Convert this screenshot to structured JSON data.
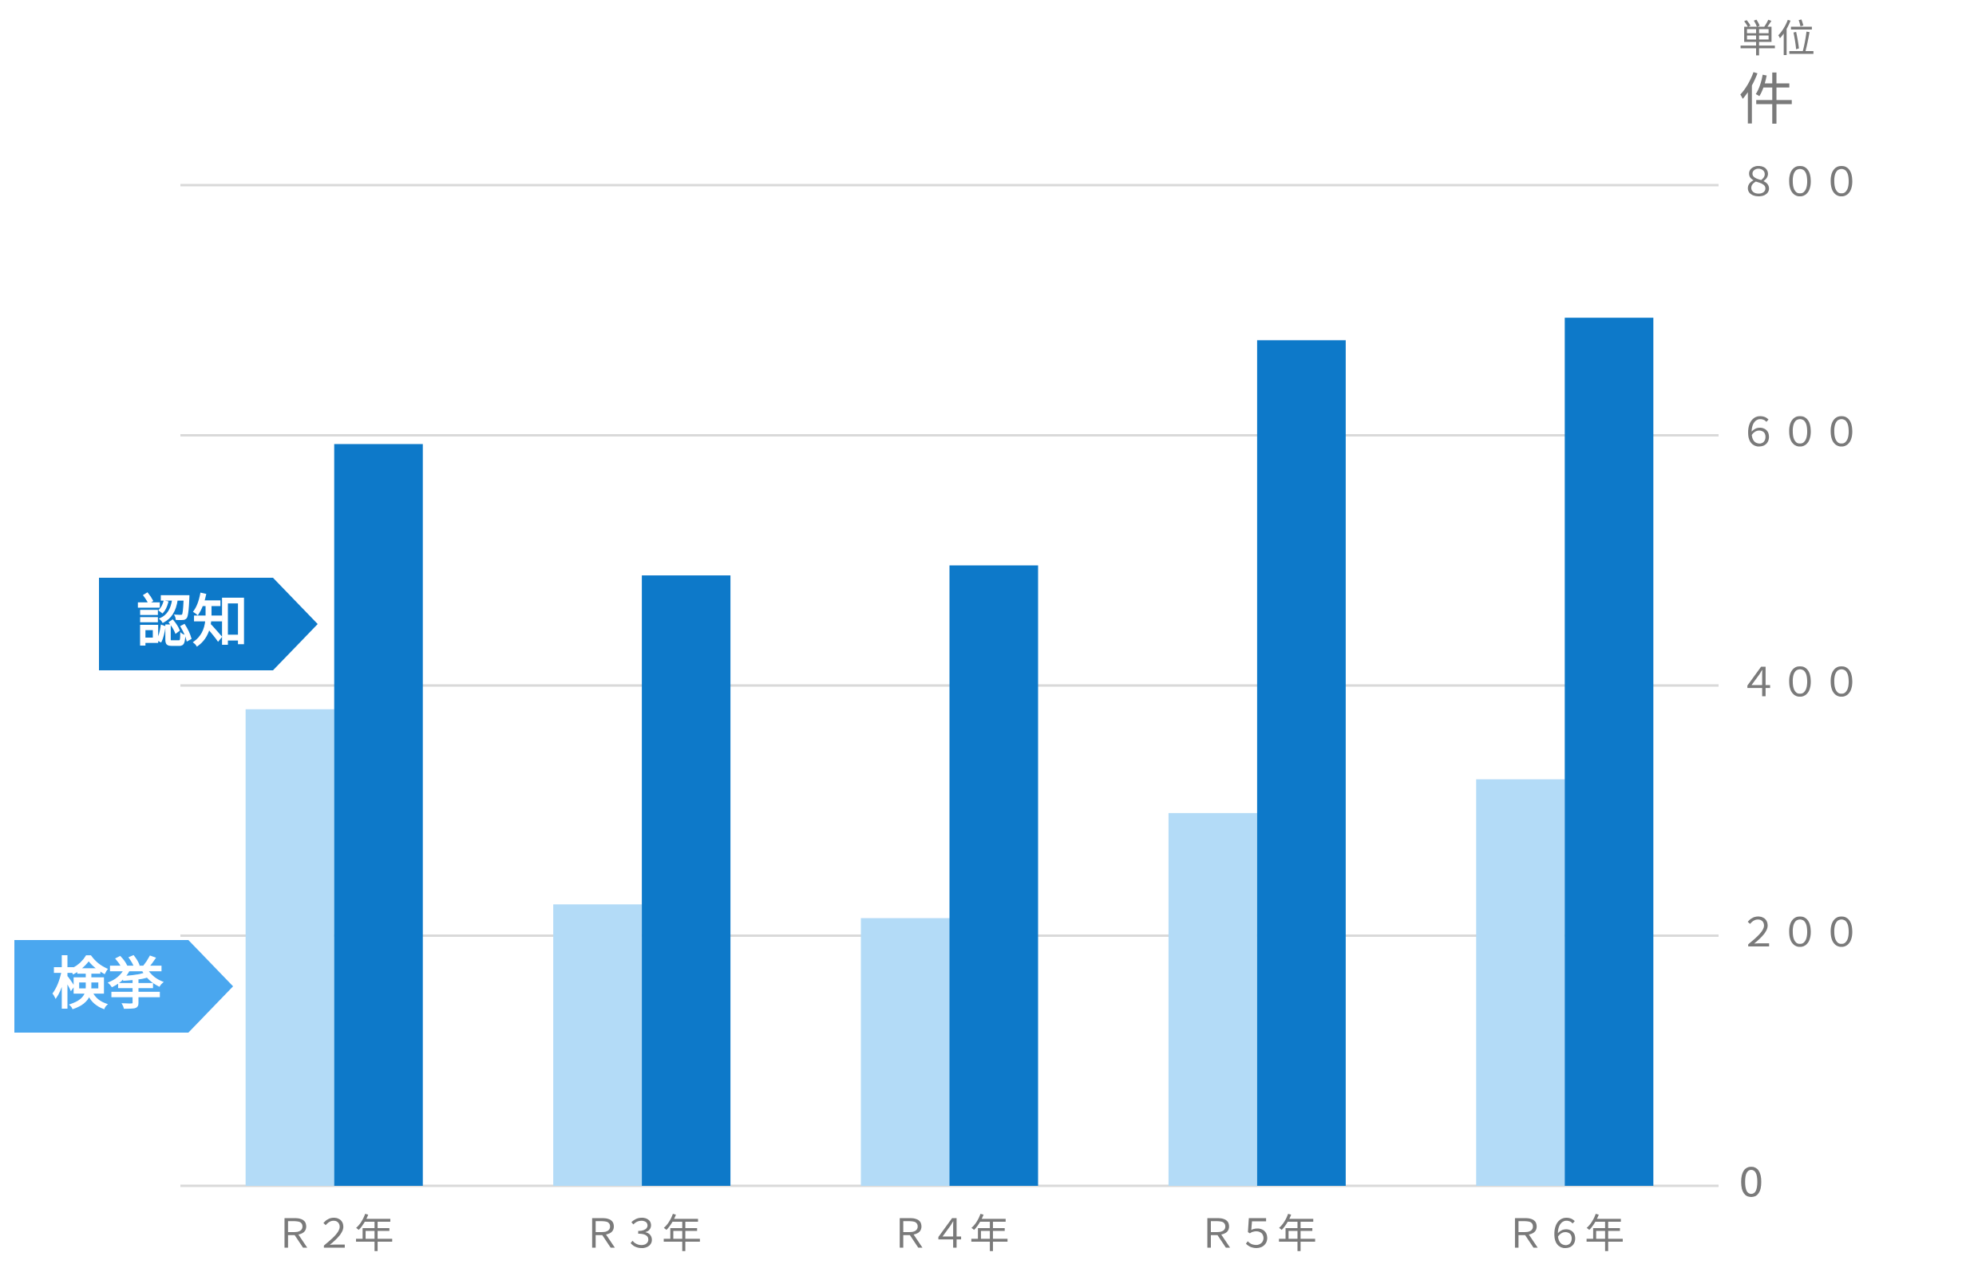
{
  "chart_data": {
    "type": "bar",
    "unit_label": "単位",
    "unit": "件",
    "categories": [
      "Ｒ２年",
      "Ｒ３年",
      "Ｒ４年",
      "Ｒ５年",
      "Ｒ６年"
    ],
    "series": [
      {
        "name": "検挙",
        "color": "#b3dbf7",
        "values": [
          381,
          225,
          214,
          298,
          325
        ]
      },
      {
        "name": "認知",
        "color": "#0d79c9",
        "values": [
          593,
          488,
          496,
          676,
          694
        ]
      }
    ],
    "ylim": [
      0,
      800
    ],
    "yticks": [
      0,
      {
        "value": 200,
        "label": "２００"
      },
      {
        "value": 400,
        "label": "４００"
      },
      {
        "value": 600,
        "label": "６００"
      },
      {
        "value": 800,
        "label": "８００"
      }
    ],
    "grid": true
  }
}
